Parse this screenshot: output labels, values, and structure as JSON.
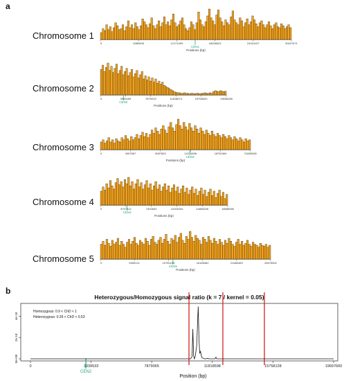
{
  "panel_a_label": "a",
  "panel_b_label": "b",
  "chromosome_labels": [
    "Chromosome 1",
    "Chromosome 2",
    "Chromosome 3",
    "Chromosome 4",
    "Chromosome 5"
  ],
  "colors": {
    "bar_fill": "#f5a31a",
    "bar_stroke": "#1a1a1a",
    "cen": "#1aa878",
    "vline": "#d62020",
    "signal": "#111111"
  },
  "chart_data": [
    {
      "type": "bar",
      "xlabel": "Positions (bp)",
      "tick_labels": [
        "0",
        "6085905",
        "12171009",
        "18256623",
        "24341107",
        "30427671"
      ],
      "centromere": {
        "label": "CEN1",
        "position": 15100000
      },
      "xlim": [
        0,
        30427671
      ],
      "values": [
        14,
        22,
        18,
        30,
        20,
        26,
        16,
        24,
        34,
        28,
        20,
        22,
        30,
        18,
        26,
        38,
        24,
        30,
        22,
        34,
        26,
        20,
        28,
        42,
        36,
        30,
        24,
        32,
        44,
        28,
        22,
        30,
        38,
        26,
        34,
        46,
        30,
        36,
        28,
        40,
        52,
        34,
        26,
        30,
        38,
        44,
        30,
        22,
        18,
        24,
        36,
        30,
        20,
        34,
        56,
        40,
        30,
        26,
        36,
        48,
        62,
        44,
        38,
        30,
        50,
        60,
        44,
        36,
        28,
        40,
        34,
        30,
        46,
        58,
        40,
        34,
        30,
        44,
        38,
        26,
        34,
        42,
        30,
        36,
        48,
        40,
        32,
        26,
        34,
        38,
        30,
        24,
        30,
        36,
        28,
        22,
        30,
        34,
        26,
        24,
        32,
        28,
        22,
        26,
        30,
        24
      ]
    },
    {
      "type": "bar",
      "xlabel": "Positions (bp)",
      "tick_labels": [
        "0",
        "3939459",
        "7879015",
        "11818674",
        "15758320",
        "19698289"
      ],
      "centromere": {
        "label": "CEN2",
        "position": 3600000
      },
      "xlim": [
        0,
        19698289
      ],
      "values": [
        48,
        56,
        44,
        52,
        60,
        46,
        54,
        42,
        50,
        58,
        40,
        46,
        54,
        38,
        44,
        50,
        36,
        42,
        48,
        34,
        40,
        46,
        32,
        38,
        44,
        30,
        36,
        28,
        34,
        26,
        32,
        24,
        30,
        22,
        26,
        20,
        24,
        18,
        16,
        14,
        12,
        10,
        8,
        6,
        5,
        4,
        4,
        3,
        3,
        4,
        3,
        3,
        2,
        3,
        3,
        2,
        3,
        3,
        2,
        3,
        3,
        4,
        3,
        3,
        4,
        3,
        6,
        8,
        7,
        6,
        8,
        7,
        6,
        7
      ]
    },
    {
      "type": "bar",
      "xlabel": "Positions (bp)",
      "tick_labels": [
        "0",
        "4097867",
        "9087803",
        "14271896",
        "18751964",
        "23459830"
      ],
      "centromere": {
        "label": "CEN3",
        "position": 14000000
      },
      "xlim": [
        0,
        23459830
      ],
      "values": [
        14,
        18,
        12,
        16,
        22,
        14,
        18,
        12,
        20,
        16,
        14,
        22,
        18,
        26,
        20,
        16,
        24,
        18,
        22,
        28,
        20,
        26,
        32,
        24,
        30,
        22,
        28,
        36,
        30,
        40,
        34,
        28,
        38,
        44,
        36,
        30,
        42,
        50,
        40,
        34,
        46,
        56,
        44,
        38,
        50,
        42,
        36,
        48,
        40,
        34,
        44,
        38,
        30,
        40,
        34,
        28,
        36,
        30,
        26,
        34,
        28,
        24,
        30,
        26,
        22,
        28,
        24,
        20,
        26,
        22,
        18,
        24,
        20,
        16,
        22,
        18,
        14,
        20,
        16,
        18
      ]
    },
    {
      "type": "bar",
      "xlabel": "Positions (bp)",
      "tick_labels": [
        "0",
        "3707812",
        "7404603",
        "11153334",
        "14808345",
        "18585055"
      ],
      "centromere": {
        "label": "CEN4",
        "position": 3900000
      },
      "xlim": [
        0,
        18585055
      ],
      "values": [
        26,
        34,
        28,
        40,
        32,
        46,
        36,
        30,
        42,
        50,
        38,
        44,
        34,
        48,
        40,
        52,
        36,
        44,
        30,
        40,
        48,
        34,
        42,
        30,
        38,
        46,
        32,
        40,
        28,
        36,
        44,
        30,
        38,
        26,
        34,
        40,
        28,
        36,
        24,
        32,
        38,
        26,
        34,
        22,
        30,
        36,
        24,
        32,
        20,
        28,
        34,
        22,
        30,
        18,
        26,
        32,
        20,
        28,
        16,
        24,
        30,
        18,
        26,
        14,
        22,
        28,
        16,
        24,
        12,
        20
      ]
    },
    {
      "type": "bar",
      "xlabel": "Positions (bp)",
      "tick_labels": [
        "0",
        "5395121",
        "10790243",
        "16185362",
        "21580483",
        "26975502"
      ],
      "centromere": {
        "label": "CEN5",
        "position": 11500000
      },
      "xlim": [
        0,
        26975502
      ],
      "values": [
        30,
        36,
        28,
        40,
        32,
        26,
        38,
        30,
        34,
        42,
        28,
        36,
        30,
        24,
        34,
        40,
        30,
        36,
        44,
        32,
        28,
        38,
        34,
        30,
        42,
        36,
        28,
        40,
        46,
        34,
        30,
        38,
        44,
        32,
        40,
        50,
        36,
        30,
        42,
        38,
        48,
        34,
        44,
        52,
        38,
        32,
        46,
        40,
        56,
        44,
        36,
        48,
        42,
        38,
        30,
        44,
        40,
        34,
        46,
        38,
        32,
        42,
        36,
        30,
        40,
        34,
        28,
        38,
        32,
        42,
        36,
        30,
        26,
        34,
        40,
        30,
        36,
        28,
        32,
        38,
        30,
        26,
        34,
        30,
        28,
        24,
        32,
        28,
        26,
        30,
        24,
        28
      ]
    },
    {
      "type": "line",
      "title": "Heterozygous/Homozygous signal ratio (k = 7 / kernel = 0.05)",
      "xlabel": "Position (bp)",
      "xlim": [
        0,
        19697660
      ],
      "ylim": [
        0,
        5e-18
      ],
      "x_ticks": [
        0,
        3939533,
        7879065,
        11818598,
        15758128,
        19697660
      ],
      "x_tick_labels": [
        "0",
        "3939533",
        "7879065",
        "11818598",
        "15758128",
        "19697660"
      ],
      "y_ticks": [
        0,
        2e-18,
        4e-18
      ],
      "y_tick_labels": [
        "0e+00",
        "2e-18",
        "4e-18"
      ],
      "legend": [
        "Homozygous:  0.9  < ChD <  1",
        "Heterozygous:  0.39  < ChD <  0.53"
      ],
      "centromere": {
        "label": "CEN2",
        "position": 3600000
      },
      "vlines": [
        10300000,
        12500000,
        15200000
      ],
      "series": [
        {
          "x": [
            0,
            10000000,
            10400000,
            10500000,
            10550000,
            10600000,
            10650000,
            10700000,
            10800000,
            10900000,
            10950000,
            11000000,
            11050000,
            11100000,
            11150000,
            11300000,
            11400000,
            11500000,
            11600000,
            11700000,
            11800000,
            12000000,
            12050000,
            12100000,
            12400000,
            19697660
          ],
          "y": [
            0,
            0,
            0,
            2e-19,
            2.8e-18,
            3e-19,
            0,
            2e-19,
            1.2e-18,
            4.9e-18,
            1.8e-18,
            5e-19,
            7e-19,
            3e-19,
            1e-19,
            0,
            0,
            5e-20,
            0,
            0,
            0,
            0,
            1.5e-19,
            0,
            0,
            0
          ]
        }
      ]
    }
  ]
}
